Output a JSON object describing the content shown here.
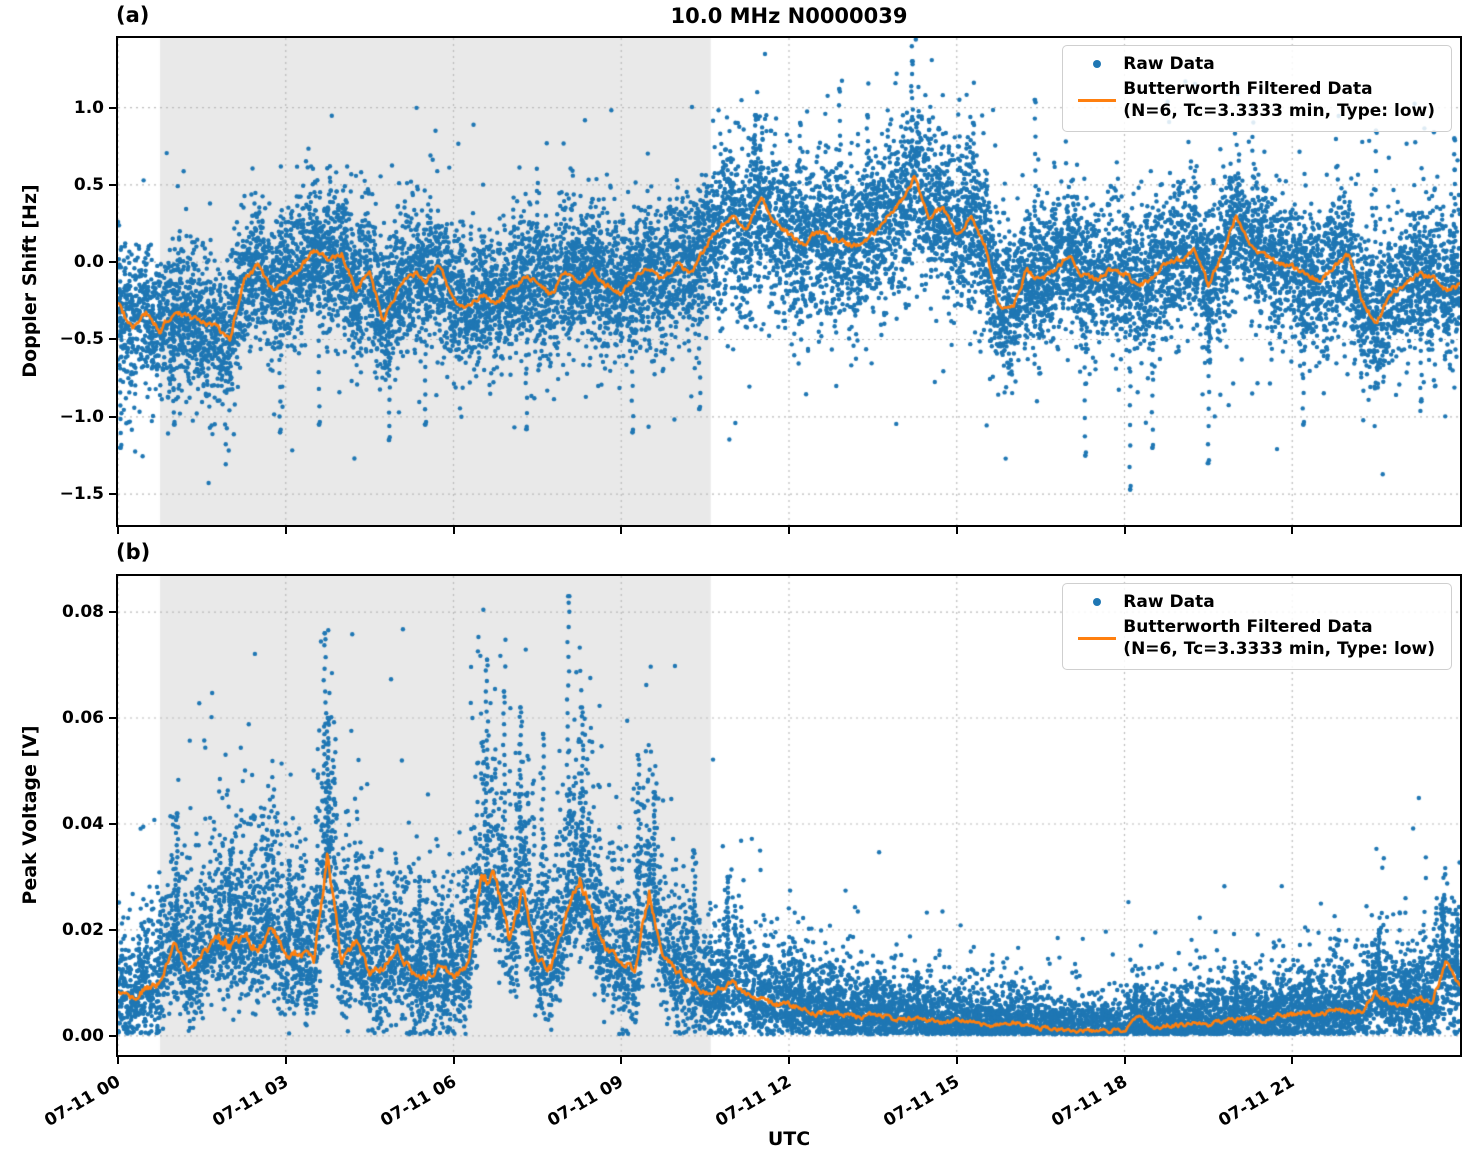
{
  "figure": {
    "title": "10.0 MHz N0000039",
    "xlabel": "UTC",
    "background": "#ffffff"
  },
  "colors": {
    "raw": "#1f77b4",
    "filtered": "#ff7f0e",
    "shade": "#e9e9e9",
    "grid": "#bbbbbb",
    "spine": "#000000",
    "text": "#000000"
  },
  "legend": {
    "raw_label": "Raw Data",
    "filtered_label_line1": "Butterworth Filtered Data",
    "filtered_label_line2": "(N=6, Tc=3.3333 min, Type: low)"
  },
  "chart_data": [
    {
      "id": "a",
      "panel_label": "(a)",
      "type": "scatter",
      "ylabel": "Doppler Shift [Hz]",
      "ylim": [
        -1.7,
        1.45
      ],
      "yticks": [
        1.0,
        0.5,
        0.0,
        -0.5,
        -1.0,
        -1.5
      ],
      "ytick_labels": [
        "1.0",
        "0.5",
        "0.0",
        "−0.5",
        "−1.0",
        "−1.5"
      ],
      "xlim_hours": [
        0,
        24
      ],
      "xticks_hours": [
        0,
        3,
        6,
        9,
        12,
        15,
        18,
        21
      ],
      "xtick_labels": [
        "07-11 00",
        "07-11 03",
        "07-11 06",
        "07-11 09",
        "07-11 12",
        "07-11 15",
        "07-11 18",
        "07-11 21"
      ],
      "show_xtick_labels": false,
      "grid": true,
      "shaded_region_hours": [
        0.75,
        10.6
      ],
      "legend_position": "upper right",
      "series": [
        {
          "name": "Raw Data",
          "kind": "scatter-band",
          "marker": "dot",
          "band": {
            "mode": "symmetric",
            "sigma": 0.22,
            "tail_prob": 0.1,
            "tail_scale": 1.9,
            "n_points": 14000,
            "boost_region_hours": [
              10.6,
              16.0
            ],
            "boost_factor": 1.15
          }
        },
        {
          "name": "Butterworth Filtered Data (N=6, Tc=3.3333 min, Type: low)",
          "kind": "line",
          "x_step_hours": 0.25,
          "x_hours": [
            0,
            0.25,
            0.5,
            0.75,
            1,
            1.25,
            1.5,
            1.75,
            2,
            2.25,
            2.5,
            2.75,
            3,
            3.25,
            3.5,
            3.75,
            4,
            4.25,
            4.5,
            4.75,
            5,
            5.25,
            5.5,
            5.75,
            6,
            6.25,
            6.5,
            6.75,
            7,
            7.25,
            7.5,
            7.75,
            8,
            8.25,
            8.5,
            8.75,
            9,
            9.25,
            9.5,
            9.75,
            10,
            10.25,
            10.5,
            10.75,
            11,
            11.25,
            11.5,
            11.75,
            12,
            12.25,
            12.5,
            12.75,
            13,
            13.25,
            13.5,
            13.75,
            14,
            14.25,
            14.5,
            14.75,
            15,
            15.25,
            15.5,
            15.75,
            16,
            16.25,
            16.5,
            16.75,
            17,
            17.25,
            17.5,
            17.75,
            18,
            18.25,
            18.5,
            18.75,
            19,
            19.25,
            19.5,
            19.75,
            20,
            20.25,
            20.5,
            20.75,
            21,
            21.25,
            21.5,
            21.75,
            22,
            22.25,
            22.5,
            22.75,
            23,
            23.25,
            23.5,
            23.75,
            24
          ],
          "values": [
            -0.28,
            -0.42,
            -0.33,
            -0.45,
            -0.32,
            -0.35,
            -0.38,
            -0.42,
            -0.5,
            -0.12,
            -0.02,
            -0.18,
            -0.12,
            -0.05,
            0.08,
            0.02,
            0.05,
            -0.18,
            -0.08,
            -0.38,
            -0.18,
            -0.06,
            -0.12,
            -0.02,
            -0.25,
            -0.3,
            -0.2,
            -0.28,
            -0.18,
            -0.1,
            -0.12,
            -0.22,
            -0.05,
            -0.12,
            -0.06,
            -0.15,
            -0.2,
            -0.1,
            -0.05,
            -0.12,
            0.0,
            -0.08,
            0.1,
            0.22,
            0.3,
            0.2,
            0.42,
            0.25,
            0.18,
            0.1,
            0.2,
            0.15,
            0.12,
            0.1,
            0.18,
            0.3,
            0.4,
            0.55,
            0.3,
            0.35,
            0.18,
            0.3,
            0.12,
            -0.28,
            -0.3,
            -0.05,
            -0.12,
            -0.05,
            0.05,
            -0.08,
            -0.12,
            -0.05,
            -0.08,
            -0.15,
            -0.1,
            0.0,
            0.02,
            0.08,
            -0.15,
            0.05,
            0.3,
            0.1,
            0.05,
            0.0,
            -0.02,
            -0.08,
            -0.12,
            -0.02,
            0.05,
            -0.25,
            -0.4,
            -0.2,
            -0.15,
            -0.08,
            -0.1,
            -0.18,
            -0.15
          ],
          "line_jitter": 0.035
        }
      ],
      "outlier_spikes": [
        {
          "t": 0.05,
          "v": -1.2
        },
        {
          "t": 1.0,
          "v": -1.05
        },
        {
          "t": 2.9,
          "v": -1.1
        },
        {
          "t": 3.6,
          "v": -1.05
        },
        {
          "t": 4.85,
          "v": -1.15
        },
        {
          "t": 5.5,
          "v": -1.05
        },
        {
          "t": 7.3,
          "v": -1.08
        },
        {
          "t": 9.2,
          "v": -1.1
        },
        {
          "t": 10.4,
          "v": -0.95
        },
        {
          "t": 11.4,
          "v": 0.95
        },
        {
          "t": 12.2,
          "v": 0.9
        },
        {
          "t": 12.9,
          "v": 1.12
        },
        {
          "t": 13.4,
          "v": 0.95
        },
        {
          "t": 14.2,
          "v": 1.3
        },
        {
          "t": 14.5,
          "v": 0.92
        },
        {
          "t": 15.3,
          "v": 0.9
        },
        {
          "t": 16.4,
          "v": 1.05
        },
        {
          "t": 17.3,
          "v": -1.25
        },
        {
          "t": 18.1,
          "v": -1.47
        },
        {
          "t": 18.5,
          "v": -1.2
        },
        {
          "t": 19.5,
          "v": -1.3
        },
        {
          "t": 20.3,
          "v": 1.0
        },
        {
          "t": 21.2,
          "v": -1.05
        },
        {
          "t": 22.5,
          "v": 0.85
        },
        {
          "t": 23.3,
          "v": -0.9
        },
        {
          "t": 23.9,
          "v": 0.8
        }
      ]
    },
    {
      "id": "b",
      "panel_label": "(b)",
      "type": "scatter",
      "ylabel": "Peak Voltage [V]",
      "ylim": [
        -0.0036,
        0.0868
      ],
      "yticks": [
        0.08,
        0.06,
        0.04,
        0.02,
        0.0
      ],
      "ytick_labels": [
        "0.08",
        "0.06",
        "0.04",
        "0.02",
        "0.00"
      ],
      "xlim_hours": [
        0,
        24
      ],
      "xticks_hours": [
        0,
        3,
        6,
        9,
        12,
        15,
        18,
        21
      ],
      "xtick_labels": [
        "07-11 00",
        "07-11 03",
        "07-11 06",
        "07-11 09",
        "07-11 12",
        "07-11 15",
        "07-11 18",
        "07-11 21"
      ],
      "show_xtick_labels": true,
      "grid": true,
      "shaded_region_hours": [
        0.75,
        10.6
      ],
      "legend_position": "upper right",
      "series": [
        {
          "name": "Raw Data",
          "kind": "scatter-band",
          "marker": "dot",
          "band": {
            "mode": "positive-skew",
            "up_scale": 0.45,
            "up_base": 0.0025,
            "down_scale": 0.45,
            "down_base": 0.0005,
            "floor": 0.0003,
            "tail_prob": 0.07,
            "tail_scale": 2.2,
            "n_points": 13000
          }
        },
        {
          "name": "Butterworth Filtered Data (N=6, Tc=3.3333 min, Type: low)",
          "kind": "line",
          "x_step_hours": 0.25,
          "x_hours": [
            0,
            0.25,
            0.5,
            0.75,
            1,
            1.25,
            1.5,
            1.75,
            2,
            2.25,
            2.5,
            2.75,
            3,
            3.25,
            3.5,
            3.75,
            4,
            4.25,
            4.5,
            4.75,
            5,
            5.25,
            5.5,
            5.75,
            6,
            6.25,
            6.5,
            6.75,
            7,
            7.25,
            7.5,
            7.75,
            8,
            8.25,
            8.5,
            8.75,
            9,
            9.25,
            9.5,
            9.75,
            10,
            10.25,
            10.5,
            10.75,
            11,
            11.25,
            11.5,
            11.75,
            12,
            12.25,
            12.5,
            12.75,
            13,
            13.25,
            13.5,
            13.75,
            14,
            14.25,
            14.5,
            14.75,
            15,
            15.25,
            15.5,
            15.75,
            16,
            16.25,
            16.5,
            16.75,
            17,
            17.25,
            17.5,
            17.75,
            18,
            18.25,
            18.5,
            18.75,
            19,
            19.25,
            19.5,
            19.75,
            20,
            20.25,
            20.5,
            20.75,
            21,
            21.25,
            21.5,
            21.75,
            22,
            22.25,
            22.5,
            22.75,
            23,
            23.25,
            23.5,
            23.75,
            24
          ],
          "values": [
            0.008,
            0.007,
            0.009,
            0.01,
            0.018,
            0.012,
            0.015,
            0.019,
            0.017,
            0.019,
            0.016,
            0.021,
            0.015,
            0.016,
            0.014,
            0.034,
            0.014,
            0.018,
            0.012,
            0.013,
            0.017,
            0.012,
            0.011,
            0.013,
            0.011,
            0.013,
            0.03,
            0.03,
            0.018,
            0.028,
            0.014,
            0.013,
            0.022,
            0.03,
            0.022,
            0.016,
            0.014,
            0.013,
            0.027,
            0.015,
            0.012,
            0.01,
            0.008,
            0.009,
            0.01,
            0.008,
            0.007,
            0.006,
            0.006,
            0.005,
            0.004,
            0.0045,
            0.004,
            0.0035,
            0.004,
            0.0035,
            0.003,
            0.0035,
            0.003,
            0.0025,
            0.003,
            0.0025,
            0.002,
            0.002,
            0.0025,
            0.002,
            0.0015,
            0.0015,
            0.001,
            0.001,
            0.001,
            0.001,
            0.001,
            0.004,
            0.0015,
            0.002,
            0.002,
            0.0025,
            0.002,
            0.003,
            0.003,
            0.0035,
            0.003,
            0.004,
            0.004,
            0.0045,
            0.004,
            0.005,
            0.0045,
            0.005,
            0.008,
            0.006,
            0.006,
            0.007,
            0.0065,
            0.0135,
            0.009
          ],
          "line_jitter_scale": 0.06,
          "line_jitter_base": 0.0006
        }
      ],
      "outlier_spikes": [
        {
          "t": 1.05,
          "v": 0.042
        },
        {
          "t": 2.0,
          "v": 0.035
        },
        {
          "t": 3.05,
          "v": 0.033
        },
        {
          "t": 3.7,
          "v": 0.076
        },
        {
          "t": 3.75,
          "v": 0.06
        },
        {
          "t": 4.3,
          "v": 0.03
        },
        {
          "t": 5.4,
          "v": 0.03
        },
        {
          "t": 6.6,
          "v": 0.071
        },
        {
          "t": 6.9,
          "v": 0.065
        },
        {
          "t": 7.2,
          "v": 0.062
        },
        {
          "t": 7.6,
          "v": 0.057
        },
        {
          "t": 8.05,
          "v": 0.083
        },
        {
          "t": 8.3,
          "v": 0.062
        },
        {
          "t": 9.3,
          "v": 0.053
        },
        {
          "t": 9.6,
          "v": 0.046
        },
        {
          "t": 10.3,
          "v": 0.035
        },
        {
          "t": 10.9,
          "v": 0.03
        },
        {
          "t": 12.2,
          "v": 0.014
        },
        {
          "t": 14.3,
          "v": 0.012
        },
        {
          "t": 18.2,
          "v": 0.0096
        },
        {
          "t": 20.0,
          "v": 0.012
        },
        {
          "t": 21.3,
          "v": 0.012
        },
        {
          "t": 22.55,
          "v": 0.02
        },
        {
          "t": 23.7,
          "v": 0.026
        },
        {
          "t": 23.95,
          "v": 0.022
        }
      ]
    }
  ]
}
